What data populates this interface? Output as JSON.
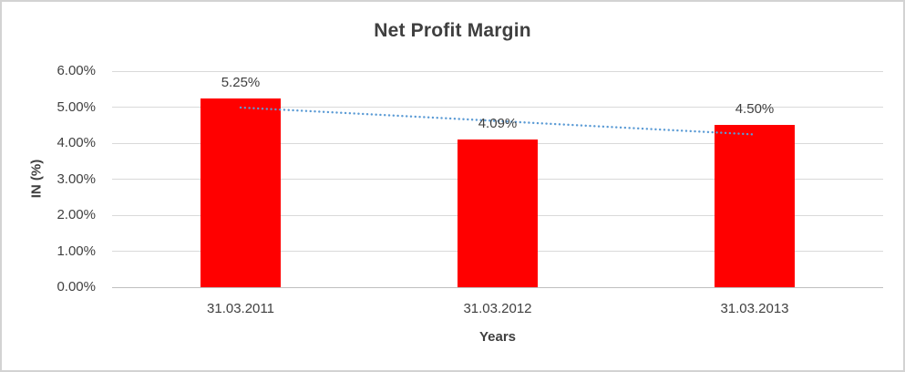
{
  "chart_data": {
    "type": "bar",
    "title": "Net Profit Margin",
    "categories": [
      "31.03.2011",
      "31.03.2012",
      "31.03.2013"
    ],
    "values": [
      5.25,
      4.09,
      4.5
    ],
    "data_labels": [
      "5.25%",
      "4.09%",
      "4.50%"
    ],
    "xlabel": "Years",
    "ylabel": "IN (%)",
    "ylim": [
      0,
      6
    ],
    "ytick_step": 1,
    "ytick_labels": [
      "0.00%",
      "1.00%",
      "2.00%",
      "3.00%",
      "4.00%",
      "5.00%",
      "6.00%"
    ],
    "grid": true,
    "legend": "none",
    "bar_color": "#ff0000",
    "trendline": {
      "type": "linear",
      "style": "dotted",
      "color": "#5b9bd5",
      "start_value": 4.99,
      "end_value": 4.24
    }
  }
}
